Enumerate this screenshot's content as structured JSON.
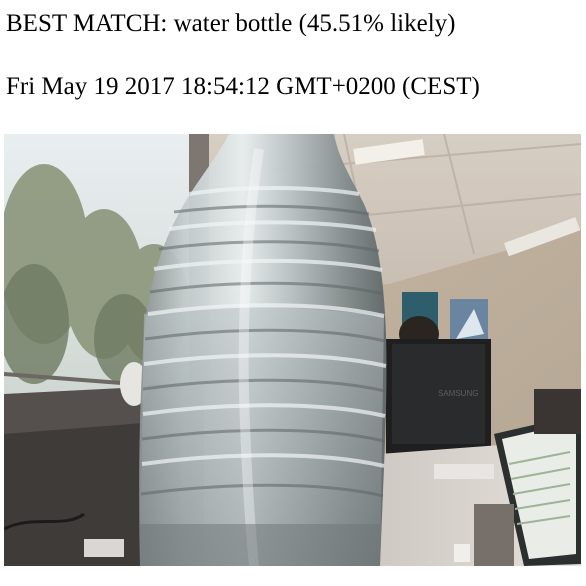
{
  "result": {
    "best_match_text": "BEST MATCH: water bottle (45.51% likely)",
    "timestamp_text": "Fri May 19 2017 18:54:12 GMT+0200 (CEST)"
  },
  "image": {
    "subject": "water bottle in office",
    "monitor_brand": "SAMSUNG"
  },
  "colors": {
    "page_background": "#ffffff",
    "text": "#000000"
  }
}
